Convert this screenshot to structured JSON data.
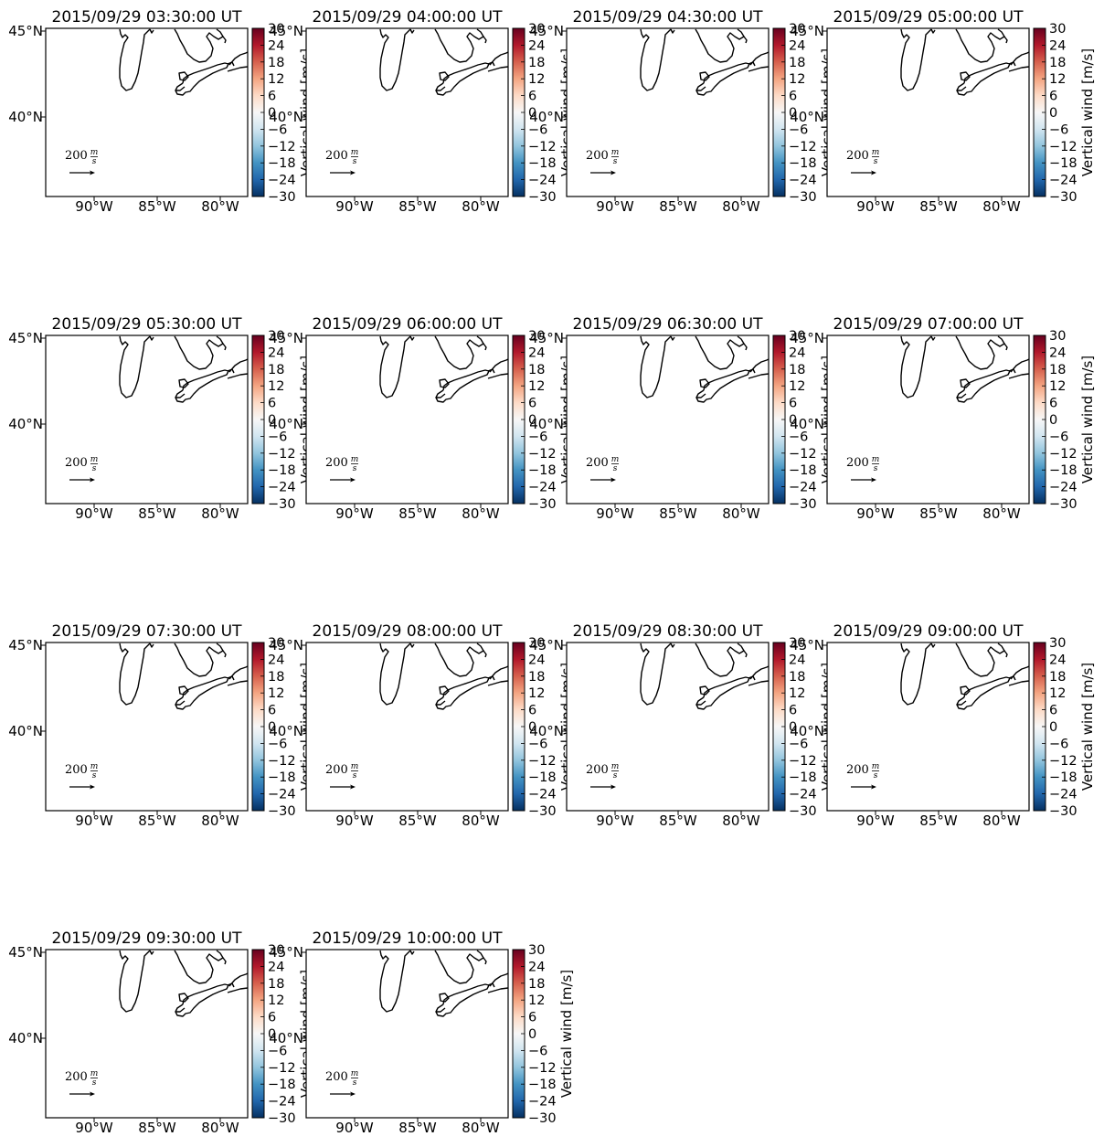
{
  "colorbar": {
    "label": "Vertical wind [m/s]",
    "ticks": [
      "30",
      "24",
      "18",
      "12",
      "6",
      "0",
      "−6",
      "−12",
      "−18",
      "−24",
      "−30"
    ],
    "range": [
      -30,
      30
    ],
    "colormap": "RdBu_r",
    "colors": [
      "#053061",
      "#2166ac",
      "#4393c3",
      "#92c5de",
      "#d1e5f0",
      "#f7f7f7",
      "#fddbc7",
      "#f4a582",
      "#d6604d",
      "#b2182b",
      "#67001f"
    ]
  },
  "map": {
    "lat_ticks": [
      "45°N",
      "40°N"
    ],
    "lon_ticks": [
      "90°W",
      "85°W",
      "80°W"
    ],
    "reference_vector": {
      "magnitude": "200",
      "unit_numerator": "m",
      "unit_denominator": "s"
    }
  },
  "panels": [
    {
      "title": "2015/09/29 03:30:00 UT"
    },
    {
      "title": "2015/09/29 04:00:00 UT"
    },
    {
      "title": "2015/09/29 04:30:00 UT"
    },
    {
      "title": "2015/09/29 05:00:00 UT"
    },
    {
      "title": "2015/09/29 05:30:00 UT"
    },
    {
      "title": "2015/09/29 06:00:00 UT"
    },
    {
      "title": "2015/09/29 06:30:00 UT"
    },
    {
      "title": "2015/09/29 07:00:00 UT"
    },
    {
      "title": "2015/09/29 07:30:00 UT"
    },
    {
      "title": "2015/09/29 08:00:00 UT"
    },
    {
      "title": "2015/09/29 08:30:00 UT"
    },
    {
      "title": "2015/09/29 09:00:00 UT"
    },
    {
      "title": "2015/09/29 09:30:00 UT"
    },
    {
      "title": "2015/09/29 10:00:00 UT"
    }
  ]
}
